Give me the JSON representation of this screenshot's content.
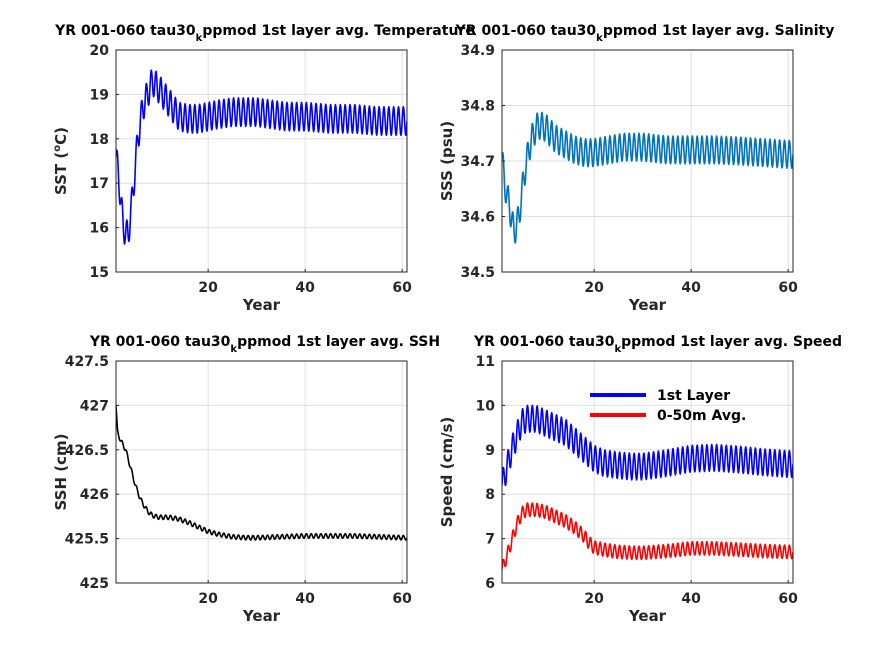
{
  "chart_data": [
    {
      "type": "line",
      "title": "YR 001-060 tau30",
      "title_sub": "k",
      "title_end": "ppmod 1st layer avg. Temperature",
      "xlabel": "Year",
      "ylabel": "SST (",
      "ylabel_sup": "o",
      "ylabel_end": "C)",
      "xlim": [
        1,
        61
      ],
      "ylim": [
        15,
        20
      ],
      "xticks": [
        20,
        40,
        60
      ],
      "yticks": [
        15,
        16,
        17,
        18,
        19,
        20
      ],
      "grid": true,
      "series": [
        {
          "color": "#0000ff",
          "seasonal_amplitude": 0.32,
          "trend": {
            "x": [
              1,
              1.5,
              2.5,
              3.5,
              4.5,
              5.5,
              6.5,
              7.5,
              8.5,
              10,
              12,
              14,
              16,
              18,
              20,
              22,
              25,
              28,
              30,
              33,
              36,
              40,
              45,
              50,
              55,
              60
            ],
            "y": [
              17.6,
              17.2,
              16.0,
              15.8,
              16.8,
              18.0,
              18.7,
              19.0,
              19.3,
              19.1,
              18.8,
              18.5,
              18.45,
              18.45,
              18.5,
              18.55,
              18.6,
              18.6,
              18.6,
              18.55,
              18.5,
              18.5,
              18.45,
              18.45,
              18.4,
              18.4
            ]
          }
        }
      ]
    },
    {
      "type": "line",
      "title": "YR 001-060 tau30",
      "title_sub": "k",
      "title_end": "ppmod 1st layer avg. Salinity",
      "xlabel": "Year",
      "ylabel": "SSS (psu)",
      "xlim": [
        1,
        61
      ],
      "ylim": [
        34.5,
        34.9
      ],
      "xticks": [
        20,
        40,
        60
      ],
      "yticks": [
        34.5,
        34.6,
        34.7,
        34.8,
        34.9
      ],
      "grid": true,
      "series": [
        {
          "color": "#0072bd",
          "seasonal_amplitude": 0.025,
          "trend": {
            "x": [
              1,
              1.5,
              2.5,
              3.5,
              4.5,
              5.5,
              6.5,
              7.5,
              8.5,
              10,
              12,
              14,
              16,
              18,
              20,
              23,
              26,
              30,
              35,
              40,
              45,
              50,
              55,
              60
            ],
            "y": [
              34.71,
              34.66,
              34.62,
              34.57,
              34.6,
              34.67,
              34.72,
              34.75,
              34.765,
              34.76,
              34.74,
              34.73,
              34.72,
              34.715,
              34.715,
              34.72,
              34.725,
              34.725,
              34.72,
              34.72,
              34.72,
              34.718,
              34.715,
              34.712
            ]
          }
        }
      ]
    },
    {
      "type": "line",
      "title": "YR 001-060 tau30",
      "title_sub": "k",
      "title_end": "ppmod 1st layer avg. SSH",
      "xlabel": "Year",
      "ylabel": "SSH (cm)",
      "xlim": [
        1,
        61
      ],
      "ylim": [
        425,
        427.5
      ],
      "xticks": [
        20,
        40,
        60
      ],
      "yticks": [
        425,
        425.5,
        426,
        426.5,
        427,
        427.5
      ],
      "grid": true,
      "series": [
        {
          "color": "#000000",
          "seasonal_amplitude": 0.025,
          "trend": {
            "x": [
              1,
              1.3,
              2,
              3,
              4,
              5,
              6,
              7,
              8,
              9,
              10,
              12,
              14,
              16,
              18,
              20,
              22,
              25,
              28,
              30,
              35,
              40,
              45,
              50,
              55,
              60
            ],
            "y": [
              427.0,
              426.7,
              426.6,
              426.5,
              426.3,
              426.1,
              425.95,
              425.85,
              425.78,
              425.75,
              425.74,
              425.74,
              425.72,
              425.68,
              425.63,
              425.58,
              425.55,
              425.52,
              425.51,
              425.51,
              425.52,
              425.53,
              425.53,
              425.53,
              425.52,
              425.51
            ]
          }
        }
      ]
    },
    {
      "type": "line",
      "title": "YR 001-060 tau30",
      "title_sub": "k",
      "title_end": "ppmod 1st layer avg. Speed",
      "xlabel": "Year",
      "ylabel": "Speed (cm/s)",
      "xlim": [
        1,
        61
      ],
      "ylim": [
        6,
        11
      ],
      "xticks": [
        20,
        40,
        60
      ],
      "yticks": [
        6,
        7,
        8,
        9,
        10,
        11
      ],
      "grid": true,
      "legend": "top-right",
      "series": [
        {
          "name": "1st Layer",
          "color": "#0000ff",
          "seasonal_amplitude": 0.3,
          "trend": {
            "x": [
              1,
              2,
              3,
              4,
              5,
              6,
              8,
              10,
              12,
              14,
              16,
              18,
              19,
              20,
              22,
              25,
              28,
              30,
              35,
              40,
              45,
              50,
              55,
              60
            ],
            "y": [
              8.2,
              8.6,
              9.0,
              9.3,
              9.6,
              9.7,
              9.7,
              9.6,
              9.5,
              9.4,
              9.2,
              9.0,
              8.9,
              8.8,
              8.7,
              8.65,
              8.62,
              8.62,
              8.7,
              8.8,
              8.82,
              8.78,
              8.72,
              8.68
            ]
          }
        },
        {
          "name": "0-50m Avg.",
          "color": "#ff0000",
          "seasonal_amplitude": 0.15,
          "trend": {
            "x": [
              1,
              2,
              3,
              4,
              5,
              6,
              8,
              10,
              12,
              14,
              16,
              18,
              19,
              20,
              22,
              25,
              28,
              30,
              35,
              40,
              45,
              50,
              55,
              60
            ],
            "y": [
              6.3,
              6.6,
              6.95,
              7.3,
              7.55,
              7.65,
              7.65,
              7.6,
              7.5,
              7.4,
              7.25,
              7.05,
              6.9,
              6.8,
              6.75,
              6.7,
              6.68,
              6.68,
              6.72,
              6.78,
              6.78,
              6.75,
              6.72,
              6.7
            ]
          }
        }
      ]
    }
  ]
}
